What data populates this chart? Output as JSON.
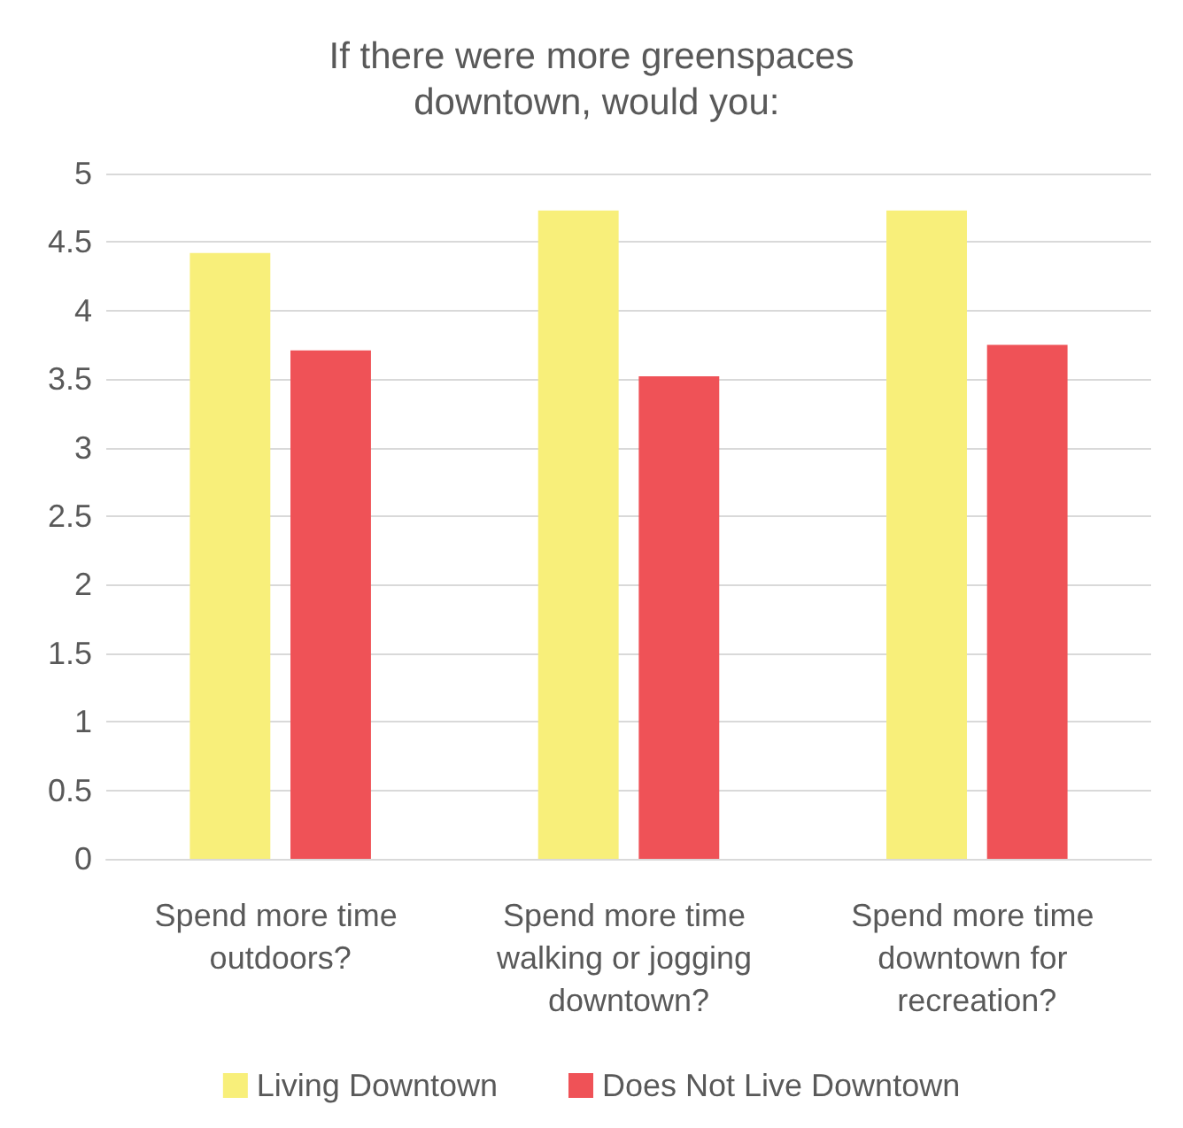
{
  "chart_data": {
    "type": "bar",
    "title": "If there were more greenspaces downtown, would you:",
    "categories": [
      "Spend more time outdoors?",
      "Spend more time walking or jogging downtown?",
      "Spend more time downtown for recreation?"
    ],
    "series": [
      {
        "name": "Living Downtown",
        "color": "#f8ef7a",
        "values": [
          4.42,
          4.73,
          4.73
        ]
      },
      {
        "name": "Does Not Live Downtown",
        "color": "#ef5257",
        "values": [
          3.71,
          3.52,
          3.75
        ]
      }
    ],
    "ylim": [
      0,
      5
    ],
    "yticks": [
      0,
      0.5,
      1,
      1.5,
      2,
      2.5,
      3,
      3.5,
      4,
      4.5,
      5
    ],
    "grid": "y",
    "legend": "bottom"
  }
}
